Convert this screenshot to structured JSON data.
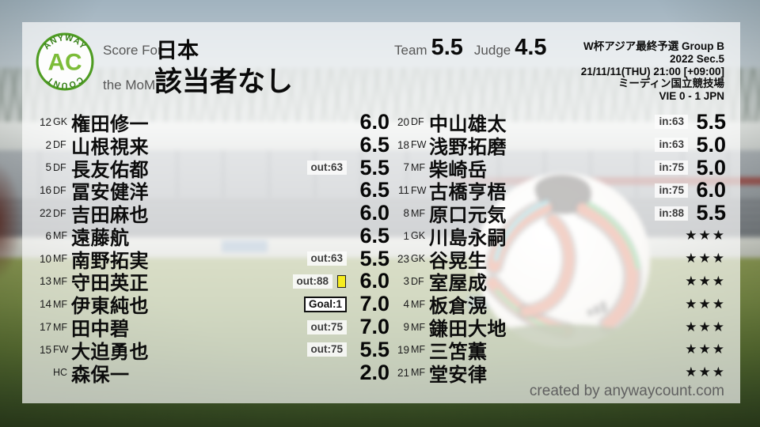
{
  "colors": {
    "logo_ring_green": "#4e9c22",
    "logo_arc_green": "#357f16",
    "logo_monogram_green": "#7cbc38",
    "yellow_card": "#f6ec1e",
    "panel_overlay": "rgba(255,255,255,0.67)",
    "text_primary": "#0c0c0c",
    "text_muted": "#575757"
  },
  "logo": {
    "arc_top": "ANYWAY",
    "monogram": "AC",
    "arc_bottom": "COUNT"
  },
  "header": {
    "score_for_label": "Score For",
    "team_name": "日本",
    "mom_label": "the MoM",
    "mom_value": "該当者なし",
    "team_label": "Team",
    "team_score": "5.5",
    "judge_label": "Judge",
    "judge_score": "4.5"
  },
  "match_info": {
    "competition": "W杯アジア最終予選 Group B",
    "season": "2022 Sec.5",
    "datetime": "21/11/11(THU) 21:00 [+09:00]",
    "venue": "ミーディン国立競技場",
    "result": "VIE 0 - 1 JPN"
  },
  "chart_data": {
    "type": "table",
    "title": "Score For 日本 — player ratings",
    "columns": [
      "number",
      "position",
      "name",
      "event",
      "score"
    ],
    "left_rows": [
      {
        "num": "12",
        "pos": "GK",
        "name": "権田修一",
        "badge": "",
        "goal": false,
        "yc": false,
        "stars": false,
        "score": "6.0"
      },
      {
        "num": "2",
        "pos": "DF",
        "name": "山根視来",
        "badge": "",
        "goal": false,
        "yc": false,
        "stars": false,
        "score": "6.5"
      },
      {
        "num": "5",
        "pos": "DF",
        "name": "長友佑都",
        "badge": "out:63",
        "goal": false,
        "yc": false,
        "stars": false,
        "score": "5.5"
      },
      {
        "num": "16",
        "pos": "DF",
        "name": "冨安健洋",
        "badge": "",
        "goal": false,
        "yc": false,
        "stars": false,
        "score": "6.5"
      },
      {
        "num": "22",
        "pos": "DF",
        "name": "吉田麻也",
        "badge": "",
        "goal": false,
        "yc": false,
        "stars": false,
        "score": "6.0"
      },
      {
        "num": "6",
        "pos": "MF",
        "name": "遠藤航",
        "badge": "",
        "goal": false,
        "yc": false,
        "stars": false,
        "score": "6.5"
      },
      {
        "num": "10",
        "pos": "MF",
        "name": "南野拓実",
        "badge": "out:63",
        "goal": false,
        "yc": false,
        "stars": false,
        "score": "5.5"
      },
      {
        "num": "13",
        "pos": "MF",
        "name": "守田英正",
        "badge": "out:88",
        "goal": false,
        "yc": true,
        "stars": false,
        "score": "6.0"
      },
      {
        "num": "14",
        "pos": "MF",
        "name": "伊東純也",
        "badge": "Goal:1",
        "goal": true,
        "yc": false,
        "stars": false,
        "score": "7.0"
      },
      {
        "num": "17",
        "pos": "MF",
        "name": "田中碧",
        "badge": "out:75",
        "goal": false,
        "yc": false,
        "stars": false,
        "score": "7.0"
      },
      {
        "num": "15",
        "pos": "FW",
        "name": "大迫勇也",
        "badge": "out:75",
        "goal": false,
        "yc": false,
        "stars": false,
        "score": "5.5"
      },
      {
        "num": "",
        "pos": "HC",
        "name": "森保一",
        "badge": "",
        "goal": false,
        "yc": false,
        "stars": false,
        "score": "2.0"
      }
    ],
    "right_rows": [
      {
        "num": "20",
        "pos": "DF",
        "name": "中山雄太",
        "badge": "in:63",
        "goal": false,
        "yc": false,
        "stars": false,
        "score": "5.5"
      },
      {
        "num": "18",
        "pos": "FW",
        "name": "浅野拓磨",
        "badge": "in:63",
        "goal": false,
        "yc": false,
        "stars": false,
        "score": "5.0"
      },
      {
        "num": "7",
        "pos": "MF",
        "name": "柴崎岳",
        "badge": "in:75",
        "goal": false,
        "yc": false,
        "stars": false,
        "score": "5.0"
      },
      {
        "num": "11",
        "pos": "FW",
        "name": "古橋亨梧",
        "badge": "in:75",
        "goal": false,
        "yc": false,
        "stars": false,
        "score": "6.0"
      },
      {
        "num": "8",
        "pos": "MF",
        "name": "原口元気",
        "badge": "in:88",
        "goal": false,
        "yc": false,
        "stars": false,
        "score": "5.5"
      },
      {
        "num": "1",
        "pos": "GK",
        "name": "川島永嗣",
        "badge": "",
        "goal": false,
        "yc": false,
        "stars": true,
        "score": "★★★"
      },
      {
        "num": "23",
        "pos": "GK",
        "name": "谷晃生",
        "badge": "",
        "goal": false,
        "yc": false,
        "stars": true,
        "score": "★★★"
      },
      {
        "num": "3",
        "pos": "DF",
        "name": "室屋成",
        "badge": "",
        "goal": false,
        "yc": false,
        "stars": true,
        "score": "★★★"
      },
      {
        "num": "4",
        "pos": "MF",
        "name": "板倉滉",
        "badge": "",
        "goal": false,
        "yc": false,
        "stars": true,
        "score": "★★★"
      },
      {
        "num": "9",
        "pos": "MF",
        "name": "鎌田大地",
        "badge": "",
        "goal": false,
        "yc": false,
        "stars": true,
        "score": "★★★"
      },
      {
        "num": "19",
        "pos": "MF",
        "name": "三笘薫",
        "badge": "",
        "goal": false,
        "yc": false,
        "stars": true,
        "score": "★★★"
      },
      {
        "num": "21",
        "pos": "MF",
        "name": "堂安律",
        "badge": "",
        "goal": false,
        "yc": false,
        "stars": true,
        "score": "★★★"
      }
    ]
  },
  "footer": {
    "credit": "created by anywaycount.com"
  }
}
